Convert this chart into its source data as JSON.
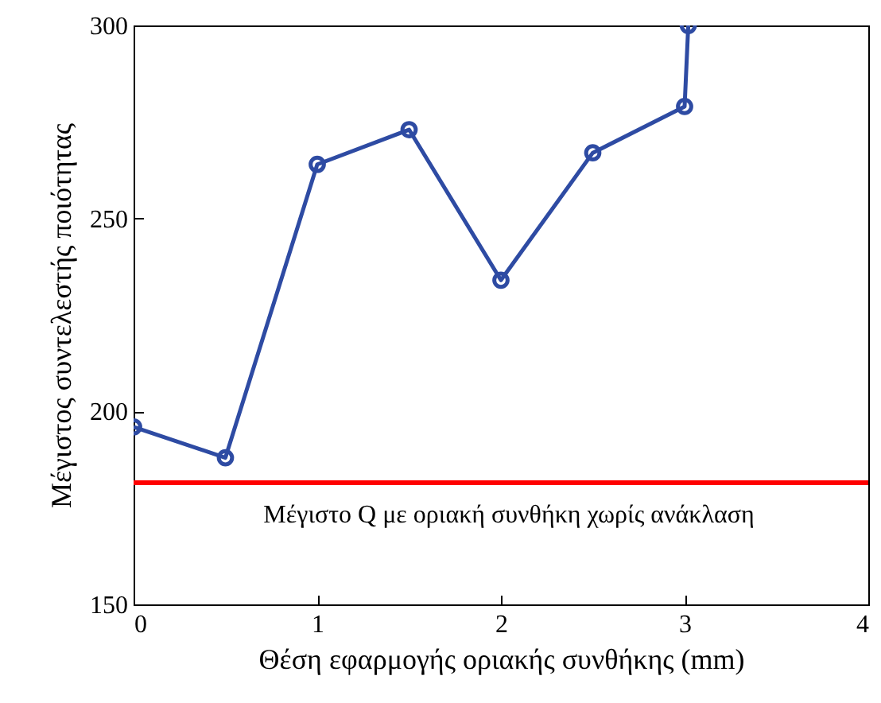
{
  "chart_data": {
    "type": "line",
    "xlabel": "Θέση εφαρμογής οριακής συνθήκης (mm)",
    "ylabel": "Μέγιστος συντελεστής ποιότητας",
    "x": [
      0,
      0.5,
      1,
      1.5,
      2,
      2.5,
      3,
      3.02
    ],
    "series": [
      {
        "color": "#2e4ba3",
        "values": [
          196,
          188,
          264,
          273,
          234,
          267,
          279,
          300
        ]
      }
    ],
    "xlim": [
      0,
      4
    ],
    "xticks": [
      0,
      1,
      2,
      3,
      4
    ],
    "ylim": [
      150,
      300
    ],
    "yticks": [
      150,
      200,
      250,
      300
    ],
    "marker": "circle",
    "line_style": "solid",
    "ref_lines": [
      {
        "axis": "y",
        "value": 181.5,
        "label": "Μέγιστο Q με οριακή συνθήκη χωρίς ανάκλαση",
        "color": "#ff0000"
      }
    ]
  }
}
